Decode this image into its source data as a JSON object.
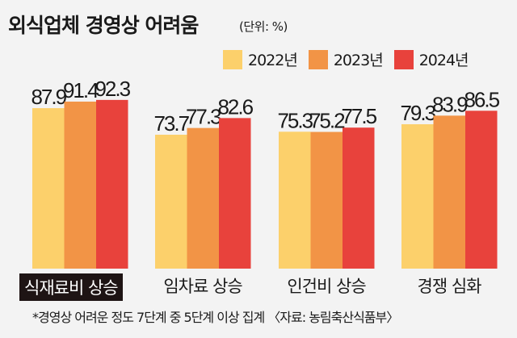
{
  "title": "외식업체 경영상 어려움",
  "unit": "(단위: %)",
  "legend": [
    "2022년",
    "2023년",
    "2024년"
  ],
  "colors": {
    "2022년": "#fcd06b",
    "2023년": "#f29446",
    "2024년": "#e8423c",
    "highlight_bg": "#1e1414"
  },
  "footnote": "*경영상 어려운 정도 7단계 중 5단계 이상 집계 〈자료: 농림축산식품부〉",
  "chart_data": {
    "type": "bar",
    "title": "외식업체 경영상 어려움",
    "unit": "%",
    "categories": [
      "식재료비 상승",
      "임차료 상승",
      "인건비 상승",
      "경쟁 심화"
    ],
    "highlighted_category": "식재료비 상승",
    "series": [
      {
        "name": "2022년",
        "values": [
          87.9,
          73.7,
          75.3,
          79.3
        ]
      },
      {
        "name": "2023년",
        "values": [
          91.4,
          77.3,
          75.2,
          83.9
        ]
      },
      {
        "name": "2024년",
        "values": [
          92.3,
          82.6,
          77.5,
          86.5
        ]
      }
    ],
    "value_labels": [
      [
        "87.9",
        "73.7",
        "75.3",
        "79.3"
      ],
      [
        "91.4",
        "77.3",
        "75.2",
        "83.9"
      ],
      [
        "92.3",
        "82.6",
        "77.5",
        "86.5"
      ]
    ],
    "legend_position": "top-right",
    "grid": false
  }
}
